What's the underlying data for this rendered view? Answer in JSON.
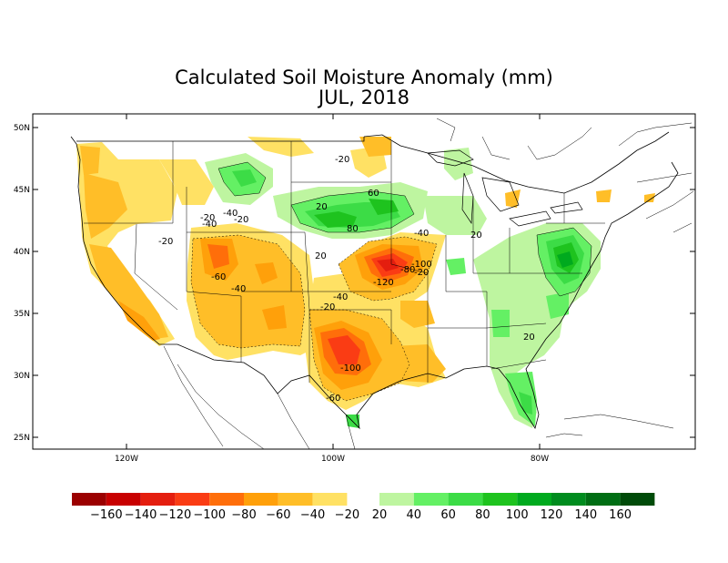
{
  "title": "Calculated Soil Moisture Anomaly (mm)",
  "subtitle": "JUL, 2018",
  "lat_labels": [
    "50N",
    "45N",
    "40N",
    "35N",
    "30N",
    "25N"
  ],
  "lon_labels": [
    "120W",
    "100W",
    "80W"
  ],
  "contour_labels": [
    "-20",
    "-20",
    "-20",
    "-40",
    "-20",
    "-40",
    "-60",
    "-40",
    "-20",
    "-40",
    "-120",
    "-100",
    "-80",
    "-100",
    "-60",
    "-20",
    "-40",
    "20",
    "60",
    "80",
    "20",
    "20",
    "20"
  ],
  "legend": {
    "negative": [
      {
        "label": "−160",
        "color": "#9b0000"
      },
      {
        "label": "−140",
        "color": "#c80000"
      },
      {
        "label": "−120",
        "color": "#e41e0f"
      },
      {
        "label": "−100",
        "color": "#fa3c14"
      },
      {
        "label": "−80",
        "color": "#ff6e0a"
      },
      {
        "label": "−60",
        "color": "#ffa00a"
      },
      {
        "label": "−40",
        "color": "#ffbe28"
      },
      {
        "label": "−20",
        "color": "#ffe164"
      }
    ],
    "positive": [
      {
        "label": "20",
        "color": "#bef5a0"
      },
      {
        "label": "40",
        "color": "#64f064"
      },
      {
        "label": "60",
        "color": "#3cdc46"
      },
      {
        "label": "80",
        "color": "#1ec31e"
      },
      {
        "label": "100",
        "color": "#00aa1e"
      },
      {
        "label": "120",
        "color": "#008c1e"
      },
      {
        "label": "140",
        "color": "#006e14"
      },
      {
        "label": "160",
        "color": "#004b0a"
      }
    ]
  },
  "colors": {
    "frame": "#000000",
    "background": "#ffffff"
  }
}
